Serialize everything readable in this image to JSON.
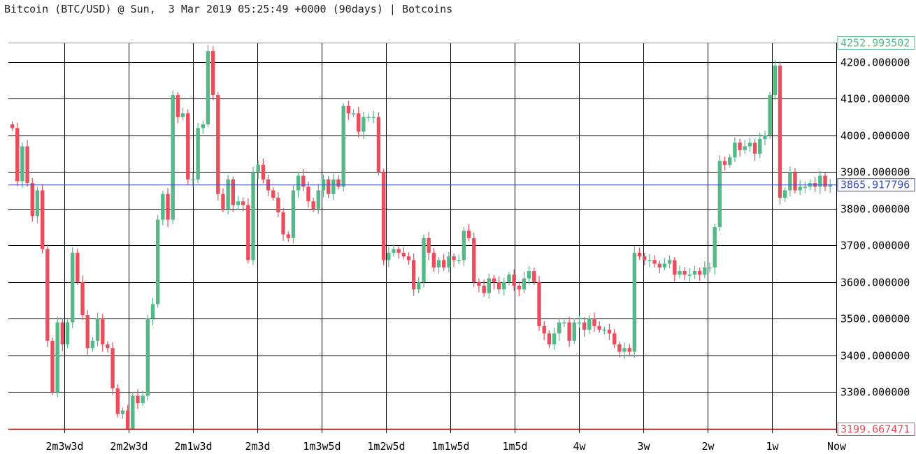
{
  "title": "Bitcoin (BTC/USD) @ Sun,  3 Mar 2019 05:25:49 +0000 (90days) | Botcoins",
  "colors": {
    "up": "#53b987",
    "down": "#eb4d5c",
    "grid": "#000000",
    "high_line": "#53b987",
    "low_line": "#8b0000",
    "current_line": "#3a4fbf"
  },
  "chart_data": {
    "type": "candlestick",
    "ylim": [
      3199.667471,
      4252.993502
    ],
    "y_ticks": [
      {
        "value": 4200,
        "label": "4200.000000"
      },
      {
        "value": 4100,
        "label": "4100.000000"
      },
      {
        "value": 4000,
        "label": "4000.000000"
      },
      {
        "value": 3900,
        "label": "3900.000000"
      },
      {
        "value": 3800,
        "label": "3800.000000"
      },
      {
        "value": 3700,
        "label": "3700.000000"
      },
      {
        "value": 3600,
        "label": "3600.000000"
      },
      {
        "value": 3500,
        "label": "3500.000000"
      },
      {
        "value": 3400,
        "label": "3400.000000"
      },
      {
        "value": 3300,
        "label": "3300.000000"
      }
    ],
    "x_ticks": [
      "2m3w3d",
      "2m2w3d",
      "2m1w3d",
      "2m3d",
      "1m3w5d",
      "1m2w5d",
      "1m1w5d",
      "1m5d",
      "4w",
      "3w",
      "2w",
      "1w",
      "Now"
    ],
    "high": {
      "value": 4252.993502,
      "label": "4252.993502"
    },
    "low": {
      "value": 3199.667471,
      "label": "3199.667471"
    },
    "current": {
      "value": 3865.917796,
      "label": "3865.917796"
    },
    "closes": [
      4020,
      3875,
      3970,
      3870,
      3780,
      3850,
      3690,
      3440,
      3300,
      3490,
      3430,
      3490,
      3680,
      3600,
      3510,
      3420,
      3440,
      3500,
      3430,
      3420,
      3310,
      3240,
      3250,
      3200,
      3290,
      3270,
      3290,
      3500,
      3540,
      3770,
      3840,
      3770,
      4110,
      4050,
      4060,
      3880,
      3880,
      4020,
      4030,
      4230,
      4110,
      3840,
      3800,
      3880,
      3810,
      3820,
      3810,
      3660,
      3900,
      3920,
      3880,
      3850,
      3830,
      3790,
      3730,
      3720,
      3850,
      3890,
      3860,
      3820,
      3800,
      3850,
      3880,
      3840,
      3880,
      3860,
      4080,
      4060,
      4060,
      4010,
      4050,
      4050,
      4050,
      3900,
      3660,
      3680,
      3690,
      3680,
      3670,
      3660,
      3580,
      3600,
      3720,
      3680,
      3640,
      3660,
      3640,
      3670,
      3660,
      3660,
      3740,
      3720,
      3600,
      3590,
      3570,
      3610,
      3600,
      3580,
      3600,
      3620,
      3590,
      3580,
      3610,
      3630,
      3600,
      3480,
      3460,
      3430,
      3460,
      3490,
      3490,
      3440,
      3490,
      3490,
      3470,
      3500,
      3480,
      3470,
      3470,
      3460,
      3430,
      3410,
      3420,
      3410,
      3680,
      3670,
      3660,
      3660,
      3650,
      3640,
      3650,
      3660,
      3620,
      3630,
      3620,
      3620,
      3630,
      3620,
      3640,
      3640,
      3750,
      3930,
      3920,
      3940,
      3980,
      3960,
      3970,
      3980,
      3950,
      3990,
      4000,
      4110,
      4190,
      3830,
      3850,
      3900,
      3850,
      3860,
      3860,
      3870,
      3860,
      3890,
      3860,
      3866
    ]
  }
}
